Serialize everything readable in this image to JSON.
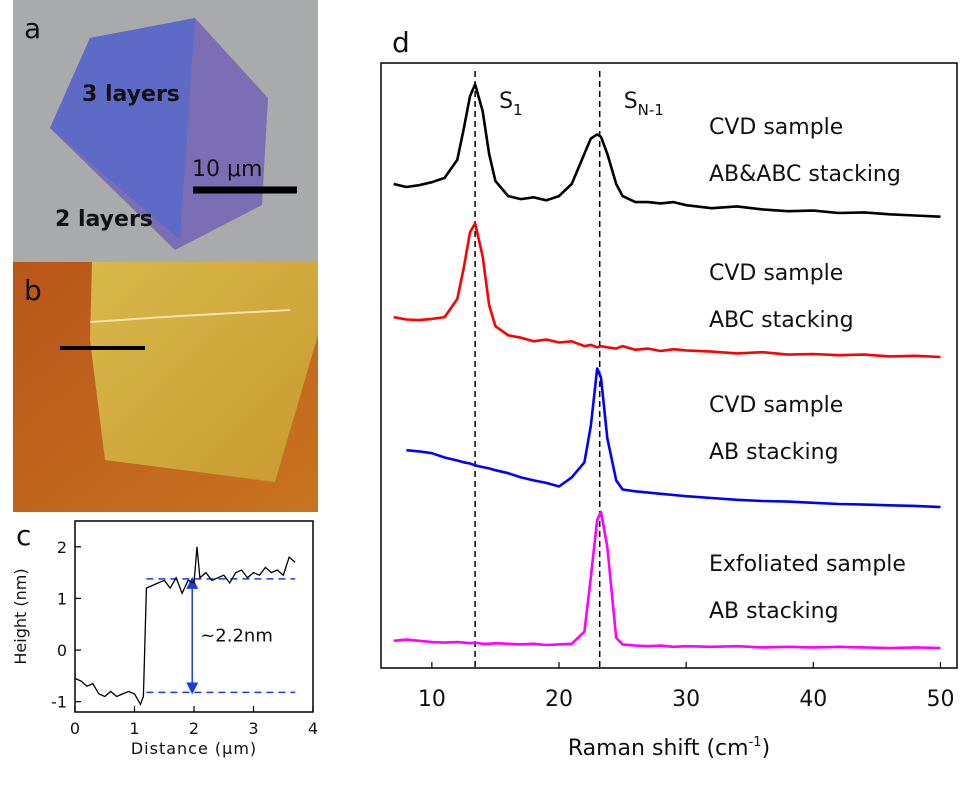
{
  "panels": {
    "a": {
      "label": "a",
      "annotations": [
        "3  layers",
        "2  layers",
        "10 μm"
      ]
    },
    "b": {
      "label": "b"
    }
  },
  "chart_data": [
    {
      "type": "line",
      "label": "c",
      "xlabel": "Distance (μm)",
      "ylabel": "Height (nm)",
      "x": [
        0,
        0.1,
        0.2,
        0.3,
        0.4,
        0.5,
        0.6,
        0.7,
        0.8,
        0.9,
        1.0,
        1.05,
        1.1,
        1.15,
        1.2,
        1.3,
        1.4,
        1.5,
        1.6,
        1.7,
        1.8,
        1.9,
        2.0,
        2.05,
        2.1,
        2.2,
        2.3,
        2.4,
        2.5,
        2.6,
        2.7,
        2.8,
        2.9,
        3.0,
        3.1,
        3.2,
        3.3,
        3.4,
        3.5,
        3.6,
        3.7
      ],
      "values": [
        -0.55,
        -0.6,
        -0.7,
        -0.65,
        -0.85,
        -0.9,
        -0.8,
        -0.9,
        -0.85,
        -0.8,
        -0.85,
        -0.95,
        -1.05,
        -0.9,
        1.2,
        1.25,
        1.3,
        1.35,
        1.2,
        1.4,
        1.1,
        1.35,
        1.3,
        2.0,
        1.4,
        1.5,
        1.35,
        1.4,
        1.45,
        1.3,
        1.5,
        1.55,
        1.4,
        1.5,
        1.45,
        1.6,
        1.5,
        1.55,
        1.45,
        1.8,
        1.7
      ],
      "color": "#000000",
      "xlim": [
        0,
        4
      ],
      "xticks": [
        0,
        1,
        2,
        3,
        4
      ],
      "ylim": [
        -1.2,
        2.5
      ],
      "yticks": [
        -1,
        0,
        1,
        2
      ],
      "reference_lines": {
        "values": [
          1.38,
          -0.82
        ],
        "from": 1.2,
        "to": 3.7,
        "color": "#1a3be0"
      },
      "arrow": {
        "x": 1.97,
        "y": [
          1.38,
          -0.82
        ],
        "color": "#1a3be0"
      },
      "annotation": "~2.2nm"
    },
    {
      "type": "line",
      "label": "d",
      "xlabel": {
        "text": "Raman shift (cm",
        "sup": "-1",
        "end": ")"
      },
      "x": [
        7,
        8,
        9,
        10,
        11,
        12,
        12.5,
        13,
        13.4,
        14,
        14.5,
        15,
        16,
        17,
        18,
        19,
        20,
        21,
        22,
        22.5,
        23,
        23.3,
        23.8,
        24.5,
        25,
        26,
        27,
        28,
        29,
        30,
        32,
        34,
        36,
        38,
        40,
        42,
        44,
        46,
        48,
        50
      ],
      "series": [
        {
          "color": "#000000",
          "annotations": [
            "CVD sample",
            "AB&ABC stacking"
          ],
          "values": [
            80,
            79.5,
            79.8,
            80.3,
            81,
            84,
            89,
            94.5,
            96.5,
            92,
            85,
            80.5,
            78,
            77.5,
            77.8,
            77.3,
            78,
            80,
            85,
            87.5,
            88.2,
            87.8,
            85,
            80,
            78,
            77,
            77,
            76.8,
            77,
            76.5,
            76,
            76.3,
            75.8,
            75.5,
            75.6,
            75.2,
            75.3,
            75,
            74.8,
            74.6
          ]
        },
        {
          "color": "#ff0000",
          "annotations": [
            "CVD sample",
            "ABC stacking"
          ],
          "values": [
            58,
            57.6,
            57.5,
            57.7,
            58,
            61,
            66,
            72,
            73.5,
            68,
            60,
            56.5,
            55,
            54.6,
            54,
            54.3,
            53.8,
            54,
            53.2,
            53.4,
            53,
            53.2,
            53,
            52.8,
            53.2,
            52.6,
            52.8,
            52.4,
            52.7,
            52.5,
            52.3,
            52,
            52.2,
            51.8,
            51.9,
            51.7,
            51.8,
            51.5,
            51.6,
            51.4
          ]
        },
        {
          "color": "#0000ff",
          "annotations": [
            "CVD sample",
            "AB stacking"
          ],
          "values": [
            null,
            36,
            35.8,
            35.5,
            34.8,
            34.3,
            34,
            33.8,
            33.5,
            33.2,
            33,
            32.7,
            32.2,
            31.5,
            31,
            30.6,
            30,
            31.5,
            34,
            40,
            49.5,
            48,
            38,
            31,
            29.5,
            29.2,
            29,
            28.8,
            28.6,
            28.4,
            28.1,
            27.8,
            27.6,
            27.5,
            27.3,
            27.1,
            27,
            26.9,
            26.8,
            26.6
          ]
        },
        {
          "color": "#ff00ff",
          "annotations": [
            "Exfoliated sample",
            "AB stacking"
          ],
          "values": [
            4.5,
            4.7,
            4.5,
            4.3,
            4.2,
            4.3,
            4.2,
            4.1,
            4.2,
            4,
            4,
            4.1,
            4,
            3.9,
            4,
            3.8,
            3.9,
            4,
            6,
            15,
            24.5,
            25.8,
            20,
            5,
            3.9,
            3.7,
            3.6,
            3.7,
            3.5,
            3.6,
            3.5,
            3.6,
            3.4,
            3.5,
            3.4,
            3.5,
            3.4,
            3.3,
            3.4,
            3.3
          ]
        }
      ],
      "xlim": [
        6,
        51.3
      ],
      "xticks": [
        10,
        20,
        30,
        40,
        50
      ],
      "ylim": [
        0,
        100
      ],
      "reference_lines": [
        13.4,
        23.2
      ],
      "peak_labels": [
        {
          "text": "S",
          "sub": "1",
          "x": 13.4
        },
        {
          "text": "S",
          "sub": "N-1",
          "x": 23.2
        }
      ]
    }
  ]
}
